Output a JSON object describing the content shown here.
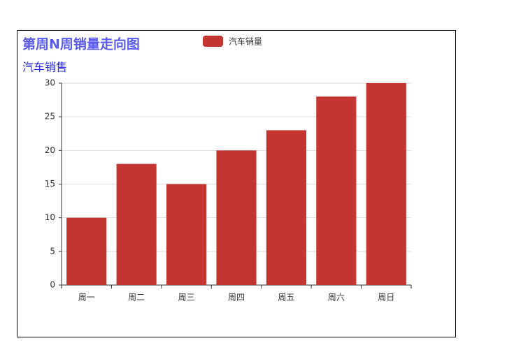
{
  "chart_data": {
    "type": "bar",
    "title": "第周N周销量走向图",
    "subtitle": "汽车销售",
    "categories": [
      "周一",
      "周二",
      "周三",
      "周四",
      "周五",
      "周六",
      "周日"
    ],
    "series": [
      {
        "name": "汽车销量",
        "color": "#c23531",
        "values": [
          10,
          18,
          15,
          20,
          23,
          28,
          30
        ]
      }
    ],
    "ylim": [
      0,
      30
    ],
    "yticks": [
      0,
      5,
      10,
      15,
      20,
      25,
      30
    ],
    "grid": true
  }
}
